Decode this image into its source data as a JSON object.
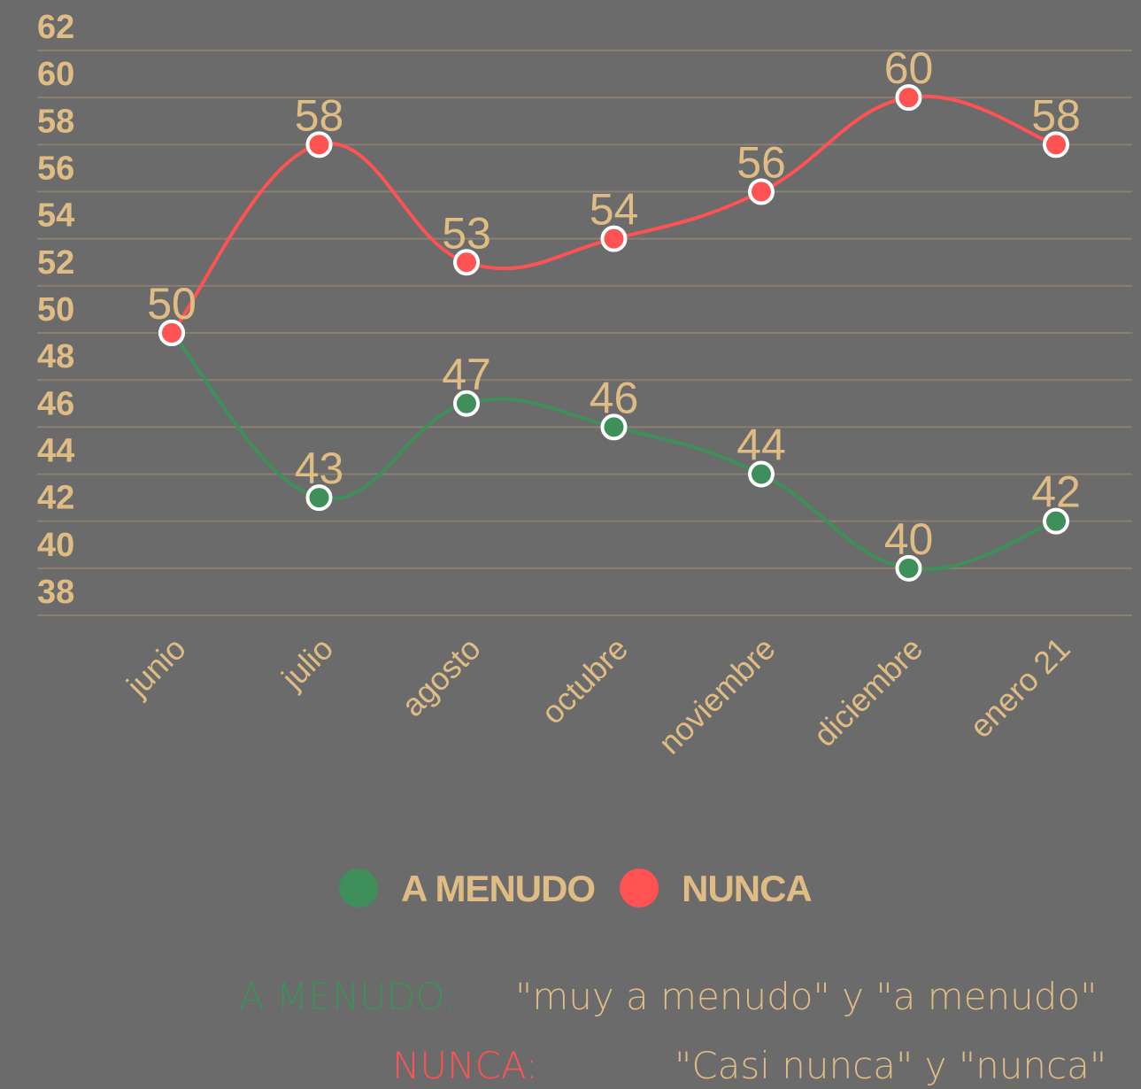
{
  "chart_data": {
    "type": "line",
    "categories": [
      "junio",
      "julio",
      "agosto",
      "octubre",
      "noviembre",
      "diciembre",
      "enero 21"
    ],
    "series": [
      {
        "name": "A MENUDO",
        "color": "#3f8f5a",
        "values": [
          50,
          43,
          47,
          46,
          44,
          40,
          42
        ]
      },
      {
        "name": "NUNCA",
        "color": "#ff5252",
        "values": [
          50,
          58,
          53,
          54,
          56,
          60,
          58
        ]
      }
    ],
    "ylim": [
      38,
      62
    ],
    "yticks": [
      38,
      40,
      42,
      44,
      46,
      48,
      50,
      52,
      54,
      56,
      58,
      60,
      62
    ],
    "grid": true,
    "legend": "bottom",
    "notes": [
      {
        "term": "A MENUDO:",
        "text": "\"muy a menudo\" y \"a menudo\"",
        "color": "#3f8f5a"
      },
      {
        "term": "NUNCA:",
        "text": "\"Casi nunca\" y \"nunca\"",
        "color": "#ff5252"
      }
    ]
  }
}
